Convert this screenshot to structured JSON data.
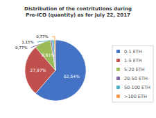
{
  "chart_data": {
    "type": "pie",
    "title": "Distribution of the contritutions during\nPre-ICO (quantity) as for July 22, 2017",
    "categories": [
      "0-1 ETH",
      "1-5 ETH",
      "5-20 ETH",
      "20-50 ETH",
      "50-100 ETH",
      ">100 ETH"
    ],
    "values": [
      62.54,
      27.97,
      8.81,
      0.77,
      1.15,
      0.77
    ],
    "value_labels": [
      "62,54%",
      "27,97%",
      "8,81%",
      "0,77%",
      "1,15%",
      "0,77%"
    ],
    "colors": [
      "#4472c4",
      "#c0504d",
      "#9bbb59",
      "#8064a2",
      "#4bacc6",
      "#f79646"
    ],
    "data_labels": true,
    "legend": "right"
  }
}
